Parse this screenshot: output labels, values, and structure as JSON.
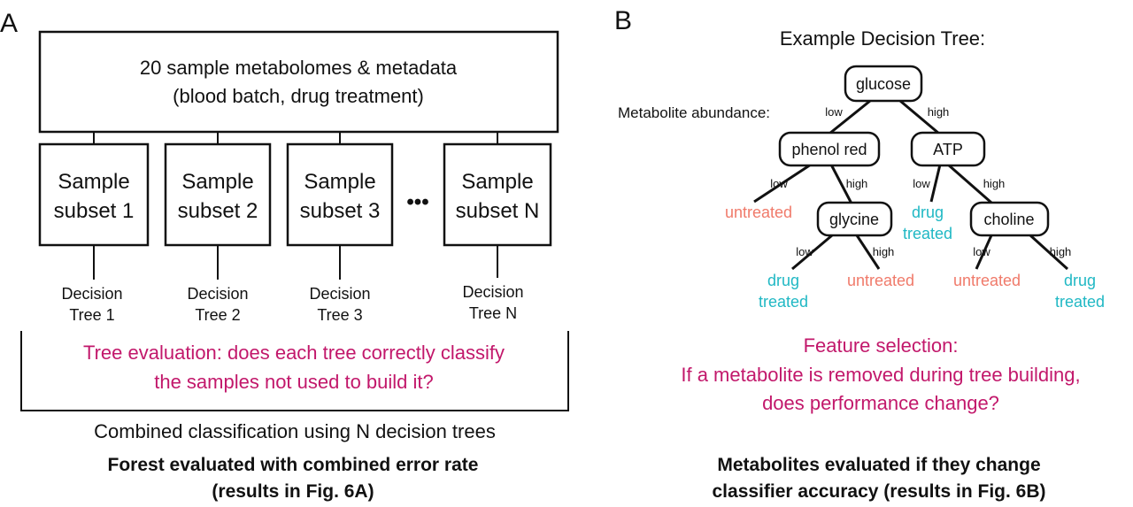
{
  "panel_a": {
    "label": "A",
    "top_box": {
      "line1": "20 sample metabolomes & metadata",
      "line2": "(blood batch, drug treatment)"
    },
    "subsets": [
      {
        "line1": "Sample",
        "line2": "subset 1",
        "tree_line1": "Decision",
        "tree_line2": "Tree 1"
      },
      {
        "line1": "Sample",
        "line2": "subset 2",
        "tree_line1": "Decision",
        "tree_line2": "Tree 2"
      },
      {
        "line1": "Sample",
        "line2": "subset 3",
        "tree_line1": "Decision",
        "tree_line2": "Tree 3"
      },
      {
        "line1": "Sample",
        "line2": "subset N",
        "tree_line1": "Decision",
        "tree_line2": "Tree N"
      }
    ],
    "ellipsis": "•••",
    "evaluation_line1": "Tree evaluation: does each tree correctly classify",
    "evaluation_line2": "the samples not used to build it?",
    "combined": "Combined classification using N decision trees",
    "result_line1": "Forest evaluated with combined error rate",
    "result_line2": "(results in Fig. 6A)"
  },
  "panel_b": {
    "label": "B",
    "title": "Example Decision Tree:",
    "axis_label": "Metabolite abundance:",
    "nodes": {
      "root": "glucose",
      "left": "phenol red",
      "right": "ATP",
      "left_right": "glycine",
      "right_right": "choline"
    },
    "edge_low": "low",
    "edge_high": "high",
    "leaf_untreated": "untreated",
    "leaf_drug_line1": "drug",
    "leaf_drug_line2": "treated",
    "feature_line1": "Feature selection:",
    "feature_line2": "If a metabolite is removed during tree building,",
    "feature_line3": "does performance change?",
    "result_line1": "Metabolites evaluated if they change",
    "result_line2": "classifier accuracy (results in Fig. 6B)"
  },
  "colors": {
    "magenta": "#c2186b",
    "untreated": "#f07a6a",
    "drug_treated": "#20b8c4",
    "line": "#111111"
  }
}
